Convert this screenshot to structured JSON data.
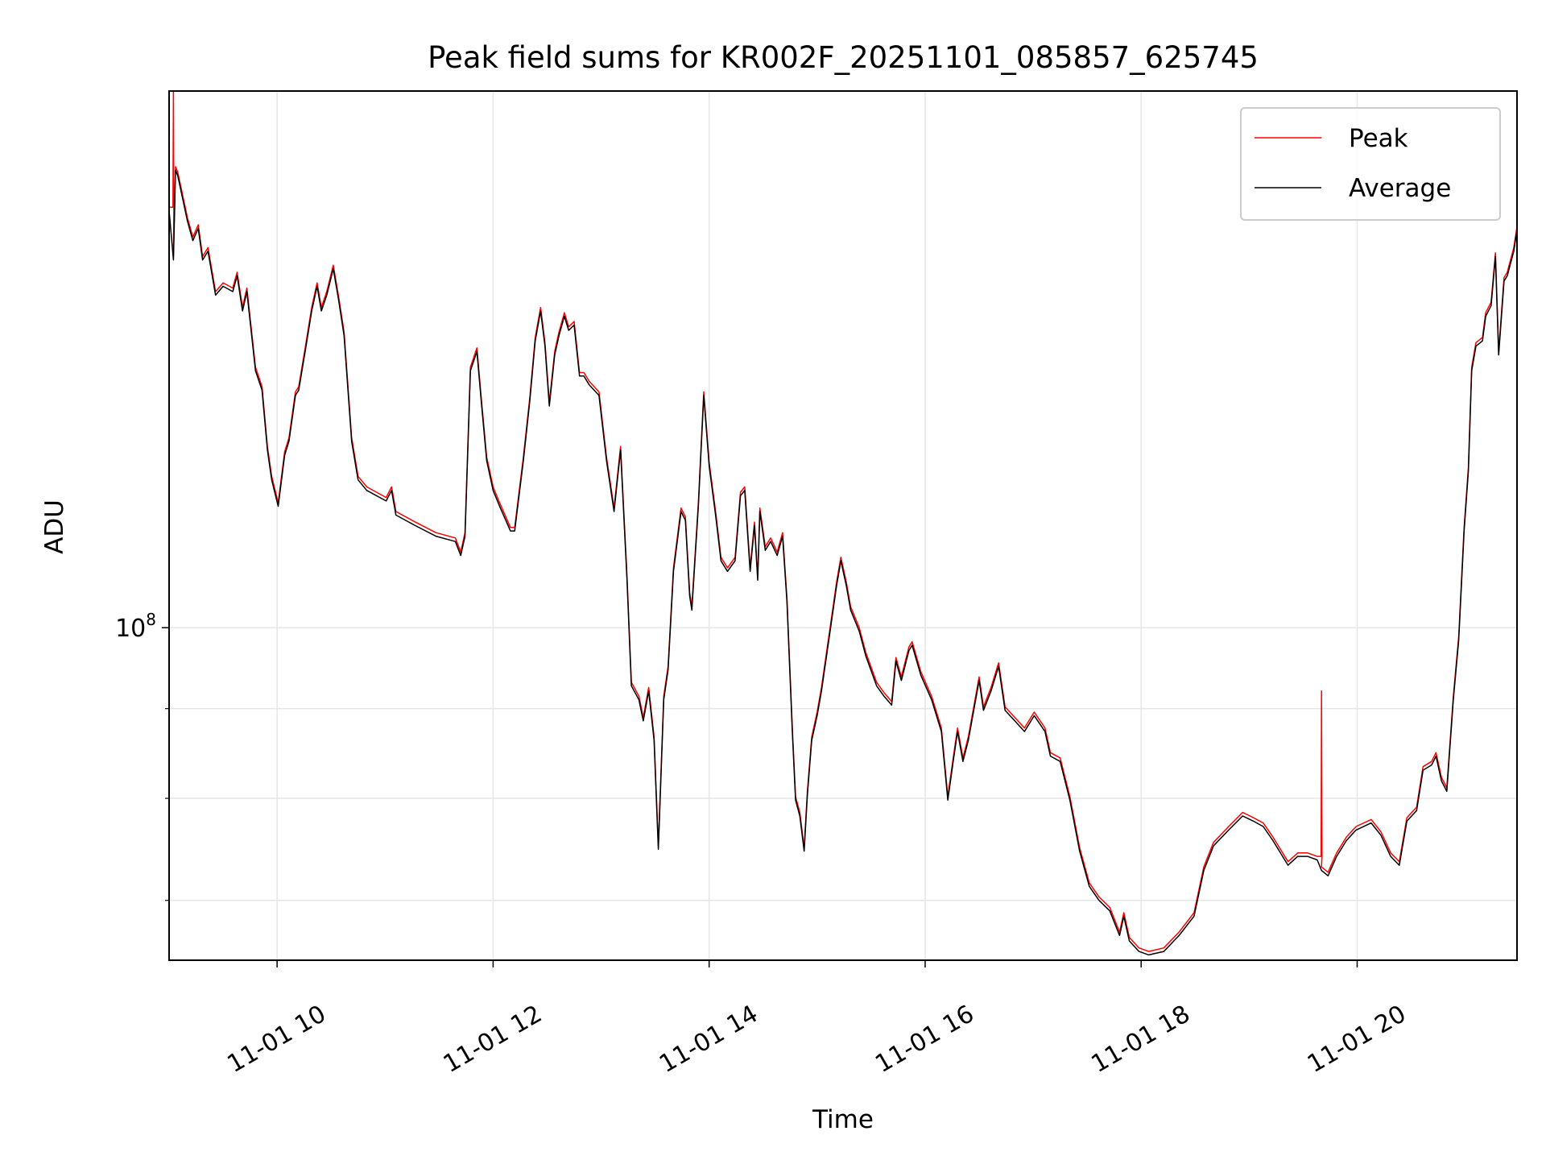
{
  "chart_data": {
    "type": "line",
    "title": "Peak field sums for KR002F_20251101_085857_625745",
    "xlabel": "Time",
    "ylabel": "ADU",
    "yscale": "log",
    "y_units_note": "y values are log10(ADU)",
    "xlim_hours": [
      9.0,
      21.48
    ],
    "ylim_log10": [
      7.811,
      8.305
    ],
    "grid": true,
    "legend_placement": "top-right",
    "x_ticks": [
      {
        "hour": 10,
        "label": "11-01 10"
      },
      {
        "hour": 12,
        "label": "11-01 12"
      },
      {
        "hour": 14,
        "label": "11-01 14"
      },
      {
        "hour": 16,
        "label": "11-01 16"
      },
      {
        "hour": 18,
        "label": "11-01 18"
      },
      {
        "hour": 20,
        "label": "11-01 20"
      }
    ],
    "y_major_ticks": [
      {
        "log10": 8,
        "base": "10",
        "exp": "8"
      }
    ],
    "y_minor_ticks_log10": [
      7.845,
      7.903,
      7.954
    ],
    "x_hours": [
      9.0,
      9.04,
      9.06,
      9.08,
      9.17,
      9.22,
      9.27,
      9.31,
      9.36,
      9.43,
      9.5,
      9.59,
      9.63,
      9.68,
      9.72,
      9.8,
      9.86,
      9.91,
      9.95,
      10.01,
      10.07,
      10.11,
      10.17,
      10.2,
      10.26,
      10.32,
      10.37,
      10.41,
      10.46,
      10.52,
      10.57,
      10.62,
      10.69,
      10.75,
      10.83,
      11.01,
      11.06,
      11.1,
      11.28,
      11.47,
      11.65,
      11.7,
      11.74,
      11.79,
      11.85,
      11.89,
      11.94,
      12.0,
      12.06,
      12.16,
      12.2,
      12.28,
      12.34,
      12.39,
      12.44,
      12.48,
      12.52,
      12.57,
      12.61,
      12.66,
      12.7,
      12.75,
      12.8,
      12.84,
      12.89,
      12.98,
      13.05,
      13.12,
      13.18,
      13.24,
      13.28,
      13.35,
      13.39,
      13.44,
      13.49,
      13.53,
      13.58,
      13.62,
      13.67,
      13.74,
      13.78,
      13.82,
      13.84,
      13.9,
      13.95,
      14.0,
      14.06,
      14.11,
      14.17,
      14.24,
      14.29,
      14.33,
      14.38,
      14.42,
      14.45,
      14.47,
      14.52,
      14.57,
      14.63,
      14.68,
      14.72,
      14.77,
      14.8,
      14.84,
      14.88,
      14.91,
      14.95,
      15.0,
      15.04,
      15.12,
      15.18,
      15.22,
      15.27,
      15.31,
      15.39,
      15.45,
      15.55,
      15.62,
      15.69,
      15.73,
      15.78,
      15.85,
      15.88,
      15.96,
      16.06,
      16.15,
      16.21,
      16.26,
      16.3,
      16.35,
      16.4,
      16.5,
      16.54,
      16.61,
      16.68,
      16.74,
      16.83,
      16.92,
      17.01,
      17.11,
      17.16,
      17.25,
      17.34,
      17.43,
      17.52,
      17.61,
      17.71,
      17.8,
      17.84,
      17.89,
      17.98,
      18.07,
      18.21,
      18.35,
      18.49,
      18.58,
      18.67,
      18.81,
      18.94,
      19.04,
      19.13,
      19.22,
      19.36,
      19.45,
      19.54,
      19.63,
      19.67,
      19.73,
      19.81,
      19.9,
      19.99,
      20.13,
      20.22,
      20.31,
      20.39,
      20.46,
      20.55,
      20.61,
      20.69,
      20.73,
      20.78,
      20.83,
      20.89,
      20.94,
      20.99,
      21.03,
      21.06,
      21.1,
      21.16,
      21.19,
      21.24,
      21.28,
      21.31,
      21.36,
      21.39,
      21.45,
      21.48
    ],
    "series": [
      {
        "name": "Average",
        "color": "#000000",
        "y_log10": [
          8.237,
          8.209,
          8.26,
          8.257,
          8.231,
          8.22,
          8.227,
          8.209,
          8.214,
          8.189,
          8.194,
          8.191,
          8.2,
          8.18,
          8.191,
          8.146,
          8.135,
          8.101,
          8.084,
          8.069,
          8.098,
          8.106,
          8.132,
          8.135,
          8.157,
          8.18,
          8.194,
          8.18,
          8.189,
          8.204,
          8.186,
          8.166,
          8.106,
          8.084,
          8.078,
          8.072,
          8.078,
          8.064,
          8.058,
          8.052,
          8.049,
          8.041,
          8.052,
          8.146,
          8.157,
          8.129,
          8.095,
          8.078,
          8.069,
          8.055,
          8.055,
          8.095,
          8.129,
          8.163,
          8.18,
          8.16,
          8.126,
          8.155,
          8.166,
          8.177,
          8.169,
          8.172,
          8.143,
          8.143,
          8.138,
          8.132,
          8.095,
          8.066,
          8.101,
          8.027,
          7.967,
          7.959,
          7.947,
          7.964,
          7.936,
          7.874,
          7.959,
          7.976,
          8.032,
          8.066,
          8.061,
          8.018,
          8.01,
          8.069,
          8.132,
          8.092,
          8.064,
          8.038,
          8.032,
          8.038,
          8.075,
          8.078,
          8.032,
          8.058,
          8.027,
          8.066,
          8.044,
          8.049,
          8.041,
          8.052,
          8.015,
          7.941,
          7.902,
          7.893,
          7.873,
          7.905,
          7.936,
          7.95,
          7.964,
          7.998,
          8.024,
          8.038,
          8.024,
          8.01,
          7.998,
          7.984,
          7.967,
          7.961,
          7.956,
          7.981,
          7.97,
          7.987,
          7.99,
          7.973,
          7.959,
          7.941,
          7.902,
          7.924,
          7.941,
          7.924,
          7.936,
          7.97,
          7.953,
          7.964,
          7.978,
          7.953,
          7.947,
          7.941,
          7.95,
          7.941,
          7.927,
          7.924,
          7.902,
          7.873,
          7.853,
          7.845,
          7.839,
          7.825,
          7.836,
          7.822,
          7.816,
          7.814,
          7.816,
          7.825,
          7.836,
          7.862,
          7.876,
          7.885,
          7.893,
          7.89,
          7.887,
          7.879,
          7.865,
          7.87,
          7.87,
          7.868,
          7.862,
          7.859,
          7.87,
          7.879,
          7.885,
          7.889,
          7.882,
          7.87,
          7.865,
          7.89,
          7.896,
          7.919,
          7.922,
          7.927,
          7.913,
          7.907,
          7.959,
          7.993,
          8.055,
          8.089,
          8.146,
          8.16,
          8.163,
          8.177,
          8.183,
          8.211,
          8.155,
          8.197,
          8.2,
          8.214,
          8.226
        ]
      },
      {
        "name": "Peak",
        "color": "#ff0000",
        "offset_from_average_log10": 0.002,
        "spikes": [
          {
            "x_hour": 9.04,
            "y_log10": 8.305
          },
          {
            "x_hour": 19.67,
            "y_log10": 7.964
          }
        ]
      }
    ]
  },
  "legend": {
    "items": [
      {
        "label": "Peak",
        "color": "#ff0000"
      },
      {
        "label": "Average",
        "color": "#000000"
      }
    ]
  },
  "colors": {
    "grid": "#e6e6e6",
    "axes": "#000000"
  }
}
